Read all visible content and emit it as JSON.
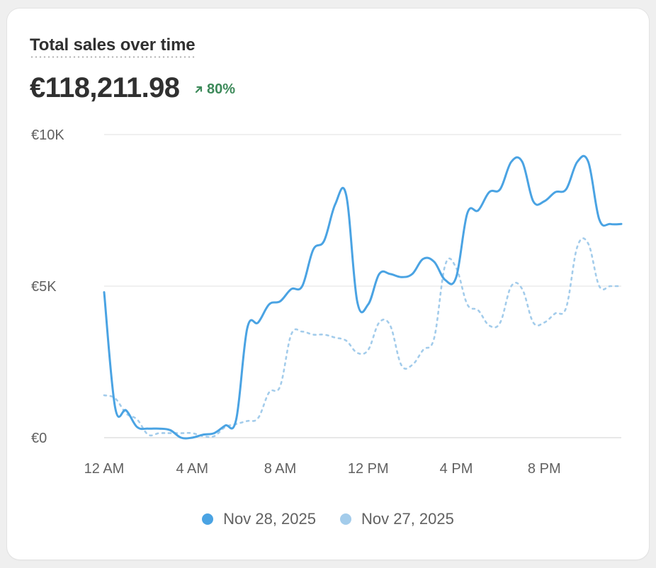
{
  "header": {
    "title": "Total sales over time",
    "total": "€118,211.98",
    "change": "80%",
    "change_color": "#3d8a5a"
  },
  "chart_data": {
    "type": "line",
    "title": "Total sales over time",
    "xlabel": "",
    "ylabel": "",
    "ylim": [
      0,
      10000
    ],
    "yticks": [
      {
        "value": 0,
        "label": "€0"
      },
      {
        "value": 5000,
        "label": "€5K"
      },
      {
        "value": 10000,
        "label": "€10K"
      }
    ],
    "xlim": [
      0,
      23.5
    ],
    "xticks": [
      {
        "value": 0,
        "label": "12 AM"
      },
      {
        "value": 4,
        "label": "4 AM"
      },
      {
        "value": 8,
        "label": "8 AM"
      },
      {
        "value": 12,
        "label": "12 PM"
      },
      {
        "value": 16,
        "label": "4 PM"
      },
      {
        "value": 20,
        "label": "8 PM"
      }
    ],
    "grid": true,
    "legend": "bottom-center",
    "series": [
      {
        "name": "Nov 28, 2025",
        "color": "#4aa3e3",
        "style": "solid",
        "x": [
          0,
          0.5,
          1.0,
          1.5,
          2.0,
          2.5,
          3.0,
          3.5,
          4.0,
          4.5,
          5.0,
          5.5,
          6.0,
          6.5,
          7.0,
          7.5,
          8.0,
          8.5,
          9.0,
          9.5,
          10.0,
          10.5,
          11.0,
          11.5,
          12.0,
          12.5,
          13.0,
          13.5,
          14.0,
          14.5,
          15.0,
          15.5,
          16.0,
          16.5,
          17.0,
          17.5,
          18.0,
          18.5,
          19.0,
          19.5,
          20.0,
          20.5,
          21.0,
          21.5,
          22.0,
          22.5,
          23.0,
          23.5
        ],
        "values": [
          4800,
          1000,
          900,
          350,
          300,
          300,
          250,
          0,
          0,
          100,
          150,
          400,
          600,
          3600,
          3800,
          4400,
          4500,
          4900,
          5000,
          6200,
          6500,
          7700,
          8000,
          4500,
          4400,
          5400,
          5400,
          5300,
          5400,
          5900,
          5800,
          5200,
          5300,
          7400,
          7500,
          8100,
          8200,
          9100,
          9100,
          7800,
          7800,
          8100,
          8200,
          9100,
          9100,
          7200,
          7050,
          7050
        ]
      },
      {
        "name": "Nov 27, 2025",
        "color": "#a3cceb",
        "style": "dashed",
        "x": [
          0,
          0.5,
          1.0,
          1.5,
          2.0,
          2.5,
          3.0,
          3.5,
          4.0,
          4.5,
          5.0,
          5.5,
          6.0,
          6.5,
          7.0,
          7.5,
          8.0,
          8.5,
          9.0,
          9.5,
          10.0,
          10.5,
          11.0,
          11.5,
          12.0,
          12.5,
          13.0,
          13.5,
          14.0,
          14.5,
          15.0,
          15.5,
          16.0,
          16.5,
          17.0,
          17.5,
          18.0,
          18.5,
          19.0,
          19.5,
          20.0,
          20.5,
          21.0,
          21.5,
          22.0,
          22.5,
          23.0,
          23.5
        ],
        "values": [
          1400,
          1300,
          800,
          600,
          100,
          150,
          150,
          150,
          150,
          50,
          50,
          350,
          450,
          550,
          650,
          1500,
          1700,
          3400,
          3500,
          3400,
          3400,
          3300,
          3200,
          2800,
          2900,
          3800,
          3700,
          2400,
          2400,
          2900,
          3300,
          5700,
          5600,
          4400,
          4200,
          3700,
          3800,
          5000,
          4900,
          3800,
          3800,
          4100,
          4300,
          6300,
          6400,
          5000,
          5000,
          5000
        ]
      }
    ]
  }
}
